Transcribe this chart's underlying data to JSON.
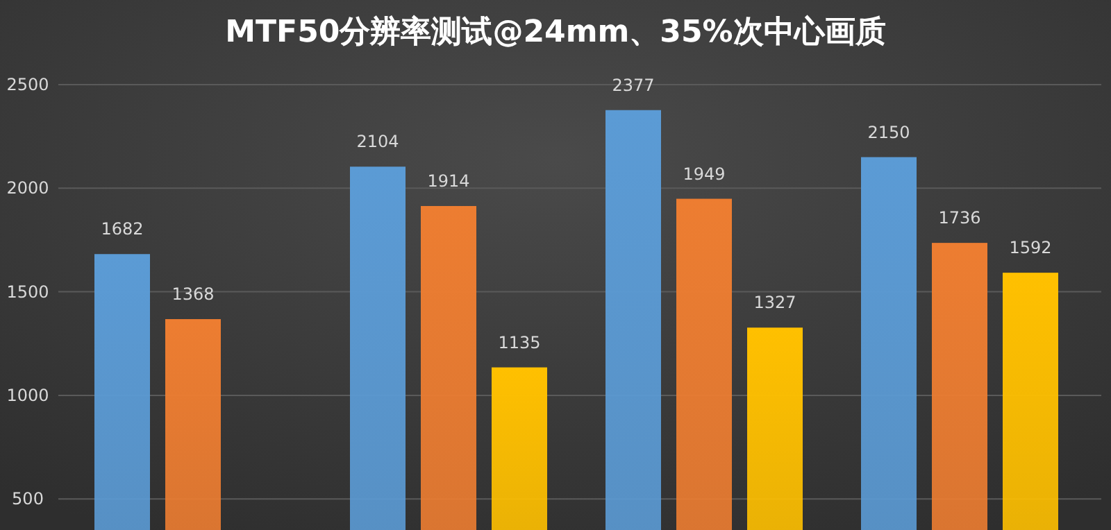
{
  "chart_data": {
    "type": "bar",
    "title": "MTF50分辨率测试@24mm、35%次中心画质",
    "categories": [
      null,
      null,
      null,
      null
    ],
    "series": [
      {
        "color": "#5b9bd5",
        "values": [
          1682,
          2104,
          2377,
          2150
        ]
      },
      {
        "color": "#ed7d31",
        "values": [
          1368,
          1914,
          1949,
          1736
        ]
      },
      {
        "color": "#ffc000",
        "values": [
          null,
          1135,
          1327,
          1592
        ]
      }
    ],
    "ylim": [
      350,
      2500
    ],
    "yticks": [
      500,
      1000,
      1500,
      2000,
      2500
    ],
    "grid": "y",
    "data_labels": true
  }
}
